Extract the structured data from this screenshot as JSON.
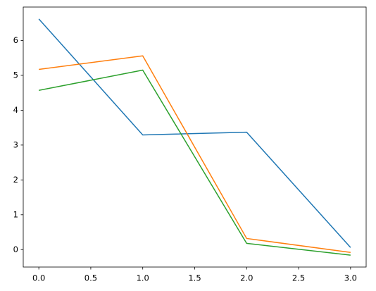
{
  "chart_data": {
    "type": "line",
    "x": [
      0,
      1,
      2,
      3
    ],
    "series": [
      {
        "color": "#1f77b4",
        "values": [
          6.62,
          3.29,
          3.37,
          0.06
        ]
      },
      {
        "color": "#ff7f0e",
        "values": [
          5.17,
          5.56,
          0.32,
          -0.08
        ]
      },
      {
        "color": "#2ca02c",
        "values": [
          4.57,
          5.15,
          0.18,
          -0.16
        ]
      }
    ],
    "xlim": [
      -0.15,
      3.15
    ],
    "xticks": [
      {
        "value": 0,
        "label": "0.0"
      },
      0.5,
      {
        "value": 1,
        "label": "1.0"
      },
      1.5,
      {
        "value": 2,
        "label": "2.0"
      },
      2.5,
      {
        "value": 3,
        "label": "3.0"
      }
    ],
    "ylim": [
      -0.5,
      6.96
    ],
    "yticks": [
      0,
      1,
      2,
      3,
      4,
      5,
      6
    ],
    "grid": false
  }
}
